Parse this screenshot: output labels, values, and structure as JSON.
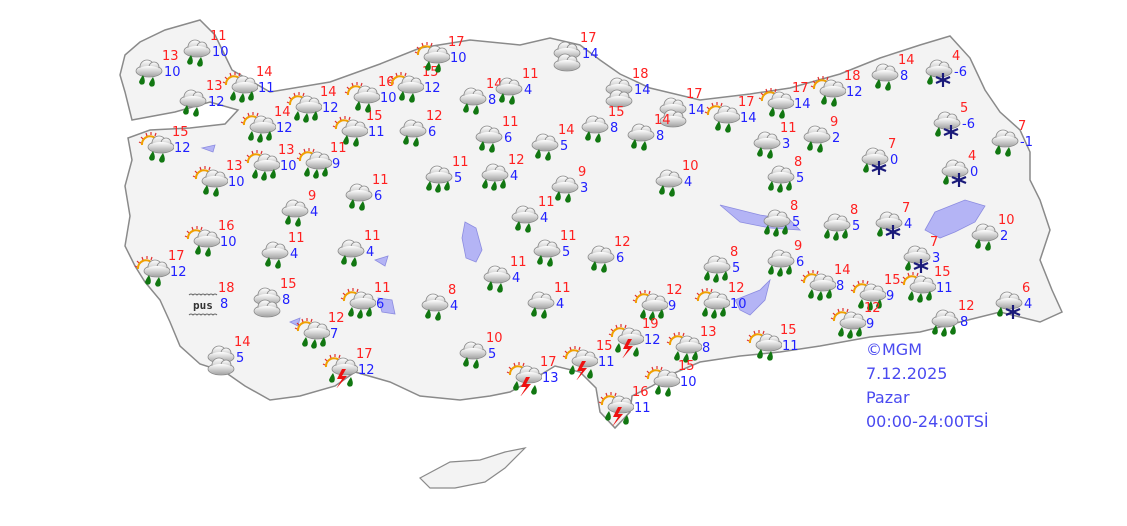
{
  "legend": {
    "copyright": "©MGM",
    "date": "7.12.2025",
    "day": "Pazar",
    "time_range": "00:00-24:00TSİ"
  },
  "colors": {
    "max_temp": "#ff2020",
    "min_temp": "#2020ff",
    "land": "#f3f3f3",
    "water": "#b4b4f5",
    "rain_drop": "#117711",
    "snow": "#1a1a7a",
    "lightning": "#ee1111"
  },
  "stations": [
    {
      "icon": "rain",
      "max": "13",
      "min": "10"
    },
    {
      "icon": "rain",
      "max": "11",
      "min": "10"
    },
    {
      "icon": "rain",
      "max": "13",
      "min": "12"
    },
    {
      "icon": "sun-heavy-rain",
      "max": "14",
      "min": "11"
    },
    {
      "icon": "sun-rain",
      "max": "15",
      "min": "12"
    },
    {
      "icon": "sun-heavy-rain",
      "max": "14",
      "min": "12"
    },
    {
      "icon": "sun-heavy-rain",
      "max": "14",
      "min": "12"
    },
    {
      "icon": "sun-rain",
      "max": "15",
      "min": "11"
    },
    {
      "icon": "sun-rain",
      "max": "16",
      "min": "10"
    },
    {
      "icon": "sun-rain",
      "max": "15",
      "min": "12"
    },
    {
      "icon": "sun-rain",
      "max": "17",
      "min": "10"
    },
    {
      "icon": "rain",
      "max": "12",
      "min": "6"
    },
    {
      "icon": "rain",
      "max": "14",
      "min": "8"
    },
    {
      "icon": "rain",
      "max": "11",
      "min": "4"
    },
    {
      "icon": "cloudy",
      "max": "17",
      "min": "14"
    },
    {
      "icon": "cloudy",
      "max": "18",
      "min": "14"
    },
    {
      "icon": "cloudy",
      "max": "17",
      "min": "14"
    },
    {
      "icon": "sun-rain",
      "max": "17",
      "min": "14"
    },
    {
      "icon": "sun-rain",
      "max": "17",
      "min": "14"
    },
    {
      "icon": "sun-rain",
      "max": "18",
      "min": "12"
    },
    {
      "icon": "rain",
      "max": "14",
      "min": "8"
    },
    {
      "icon": "rain-snow",
      "max": "4",
      "min": "-6"
    },
    {
      "icon": "rain-snow",
      "max": "5",
      "min": "-6"
    },
    {
      "icon": "rain",
      "max": "7",
      "min": "-1"
    },
    {
      "icon": "rain-snow",
      "max": "7",
      "min": "0"
    },
    {
      "icon": "rain-snow",
      "max": "4",
      "min": "0"
    },
    {
      "icon": "rain",
      "max": "11",
      "min": "6"
    },
    {
      "icon": "rain",
      "max": "14",
      "min": "5"
    },
    {
      "icon": "rain",
      "max": "15",
      "min": "8"
    },
    {
      "icon": "rain",
      "max": "14",
      "min": "8"
    },
    {
      "icon": "rain",
      "max": "11",
      "min": "3"
    },
    {
      "icon": "rain",
      "max": "9",
      "min": "2"
    },
    {
      "icon": "heavy-rain",
      "max": "8",
      "min": "5"
    },
    {
      "icon": "sun-heavy-rain",
      "max": "13",
      "min": "10"
    },
    {
      "icon": "sun-heavy-rain",
      "max": "11",
      "min": "9"
    },
    {
      "icon": "sun-rain",
      "max": "13",
      "min": "10"
    },
    {
      "icon": "heavy-rain",
      "max": "11",
      "min": "5"
    },
    {
      "icon": "heavy-rain",
      "max": "12",
      "min": "4"
    },
    {
      "icon": "rain",
      "max": "9",
      "min": "3"
    },
    {
      "icon": "rain",
      "max": "10",
      "min": "4"
    },
    {
      "icon": "rain",
      "max": "11",
      "min": "6"
    },
    {
      "icon": "rain",
      "max": "9",
      "min": "4"
    },
    {
      "icon": "sun-rain",
      "max": "16",
      "min": "10"
    },
    {
      "icon": "sun-rain",
      "max": "17",
      "min": "12"
    },
    {
      "icon": "rain",
      "max": "11",
      "min": "4"
    },
    {
      "icon": "rain",
      "max": "11",
      "min": "4"
    },
    {
      "icon": "rain",
      "max": "11",
      "min": "4"
    },
    {
      "icon": "rain",
      "max": "11",
      "min": "5"
    },
    {
      "icon": "rain",
      "max": "11",
      "min": "4"
    },
    {
      "icon": "rain",
      "max": "12",
      "min": "6"
    },
    {
      "icon": "heavy-rain",
      "max": "8",
      "min": "5"
    },
    {
      "icon": "heavy-rain",
      "max": "8",
      "min": "5"
    },
    {
      "icon": "heavy-rain",
      "max": "9",
      "min": "6"
    },
    {
      "icon": "heavy-rain",
      "max": "8",
      "min": "5"
    },
    {
      "icon": "rain-snow",
      "max": "7",
      "min": "4"
    },
    {
      "icon": "rain-snow",
      "max": "7",
      "min": "3"
    },
    {
      "icon": "rain",
      "max": "10",
      "min": "2"
    },
    {
      "icon": "fog",
      "max": "18",
      "min": "8",
      "label": "pus"
    },
    {
      "icon": "cloudy",
      "max": "15",
      "min": "8"
    },
    {
      "icon": "sun-heavy-rain",
      "max": "11",
      "min": "6"
    },
    {
      "icon": "rain",
      "max": "8",
      "min": "4"
    },
    {
      "icon": "rain",
      "max": "11",
      "min": "4"
    },
    {
      "icon": "sun-heavy-rain",
      "max": "12",
      "min": "9"
    },
    {
      "icon": "sun-heavy-rain",
      "max": "12",
      "min": "10"
    },
    {
      "icon": "sun-heavy-rain",
      "max": "14",
      "min": "8"
    },
    {
      "icon": "sun-heavy-rain",
      "max": "15",
      "min": "9"
    },
    {
      "icon": "sun-heavy-rain",
      "max": "15",
      "min": "11"
    },
    {
      "icon": "rain-snow",
      "max": "6",
      "min": "4"
    },
    {
      "icon": "sun-heavy-rain",
      "max": "12",
      "min": "7"
    },
    {
      "icon": "cloudy",
      "max": "14",
      "min": "5"
    },
    {
      "icon": "sun-thunder",
      "max": "17",
      "min": "12"
    },
    {
      "icon": "rain",
      "max": "10",
      "min": "5"
    },
    {
      "icon": "sun-thunder",
      "max": "17",
      "min": "13"
    },
    {
      "icon": "sun-thunder",
      "max": "15",
      "min": "11"
    },
    {
      "icon": "sun-thunder",
      "max": "19",
      "min": "12"
    },
    {
      "icon": "sun-heavy-rain",
      "max": "13",
      "min": "8"
    },
    {
      "icon": "sun-rain",
      "max": "15",
      "min": "11"
    },
    {
      "icon": "sun-heavy-rain",
      "max": "12",
      "min": "9"
    },
    {
      "icon": "heavy-rain",
      "max": "12",
      "min": "8"
    },
    {
      "icon": "sun-rain",
      "max": "15",
      "min": "10"
    },
    {
      "icon": "sun-thunder",
      "max": "16",
      "min": "11"
    }
  ]
}
